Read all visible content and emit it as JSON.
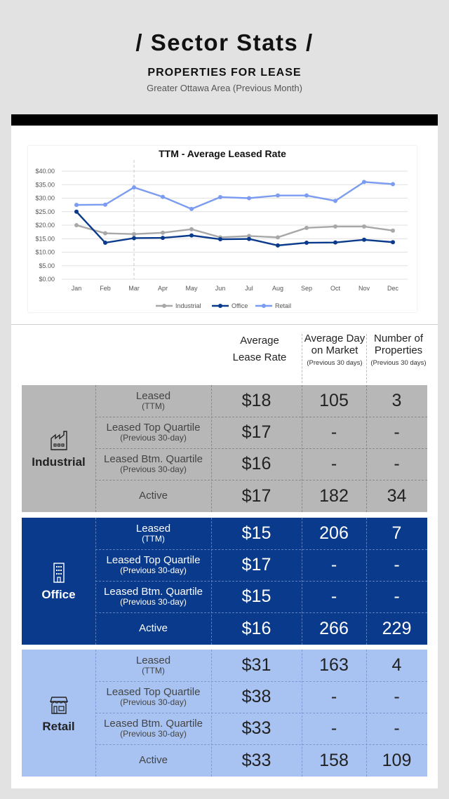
{
  "header": {
    "title": "/ Sector Stats /",
    "subtitle": "PROPERTIES FOR LEASE",
    "region": "Greater Ottawa Area (Previous Month)"
  },
  "chart_data": {
    "type": "line",
    "title": "TTM - Average Leased Rate",
    "categories": [
      "Jan",
      "Feb",
      "Mar",
      "Apr",
      "May",
      "Jun",
      "Jul",
      "Aug",
      "Sep",
      "Oct",
      "Nov",
      "Dec"
    ],
    "y_ticks": [
      "$0.00",
      "$5.00",
      "$10.00",
      "$15.00",
      "$20.00",
      "$25.00",
      "$30.00",
      "$35.00",
      "$40.00"
    ],
    "ylim": [
      0,
      40
    ],
    "grid": true,
    "legend_position": "bottom",
    "marker_line_at": "Mar",
    "series": [
      {
        "name": "Industrial",
        "color": "#a8a8a8",
        "values": [
          20,
          17,
          16.7,
          17.2,
          18.5,
          15.5,
          16,
          15.5,
          19,
          19.5,
          19.5,
          18
        ]
      },
      {
        "name": "Office",
        "color": "#0a3a8c",
        "values": [
          25,
          13.5,
          15.2,
          15.3,
          16.2,
          14.8,
          14.9,
          12.5,
          13.5,
          13.6,
          14.6,
          13.7
        ]
      },
      {
        "name": "Retail",
        "color": "#7b9cf0",
        "values": [
          27.5,
          27.6,
          34,
          30.5,
          26,
          30.4,
          30,
          31,
          31,
          29,
          36,
          35.2
        ]
      }
    ]
  },
  "table": {
    "headers": {
      "rate": "Average Lease Rate",
      "day": "Average Day on Market",
      "day_sub": "(Previous 30 days)",
      "num": "Number of Properties",
      "num_sub": "(Previous 30 days)"
    },
    "row_labels": {
      "leased": "Leased",
      "leased_sub": "(TTM)",
      "top": "Leased Top Quartile",
      "top_sub": "(Previous 30-day)",
      "btm": "Leased Btm. Quartile",
      "btm_sub": "(Previous 30-day)",
      "active": "Active"
    },
    "sectors": [
      {
        "name": "Industrial",
        "icon": "factory-icon",
        "color": "#b7b7b7",
        "rows": [
          [
            "$18",
            "105",
            "3"
          ],
          [
            "$17",
            "-",
            "-"
          ],
          [
            "$16",
            "-",
            "-"
          ],
          [
            "$17",
            "182",
            "34"
          ]
        ]
      },
      {
        "name": "Office",
        "icon": "office-building-icon",
        "color": "#0a3a8c",
        "rows": [
          [
            "$15",
            "206",
            "7"
          ],
          [
            "$17",
            "-",
            "-"
          ],
          [
            "$15",
            "-",
            "-"
          ],
          [
            "$16",
            "266",
            "229"
          ]
        ]
      },
      {
        "name": "Retail",
        "icon": "storefront-icon",
        "color": "#a8c3f2",
        "rows": [
          [
            "$31",
            "163",
            "4"
          ],
          [
            "$38",
            "-",
            "-"
          ],
          [
            "$33",
            "-",
            "-"
          ],
          [
            "$33",
            "158",
            "109"
          ]
        ]
      }
    ]
  }
}
